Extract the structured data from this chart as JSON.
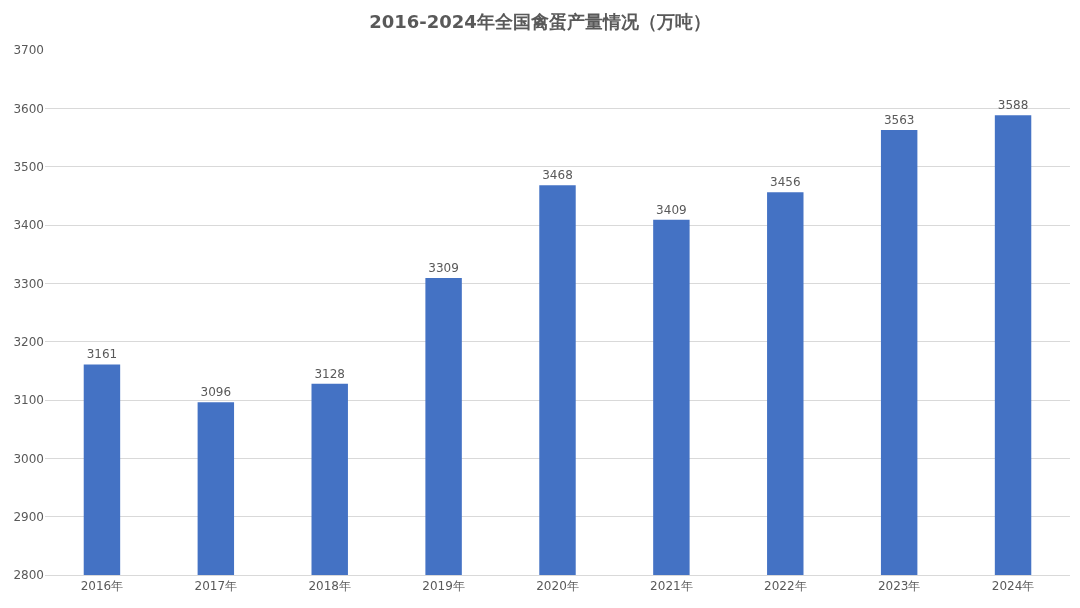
{
  "chart_data": {
    "type": "bar",
    "title": "2016-2024年全国禽蛋产量情况（万吨）",
    "categories": [
      "2016年",
      "2017年",
      "2018年",
      "2019年",
      "2020年",
      "2021年",
      "2022年",
      "2023年",
      "2024年"
    ],
    "values": [
      3161,
      3096,
      3128,
      3309,
      3468,
      3409,
      3456,
      3563,
      3588
    ],
    "color": "#4472c4",
    "ylim": [
      2800,
      3700
    ],
    "yticks": [
      2800,
      2900,
      3000,
      3100,
      3200,
      3300,
      3400,
      3500,
      3600,
      3700
    ],
    "grid": "y",
    "data_labels": true
  }
}
